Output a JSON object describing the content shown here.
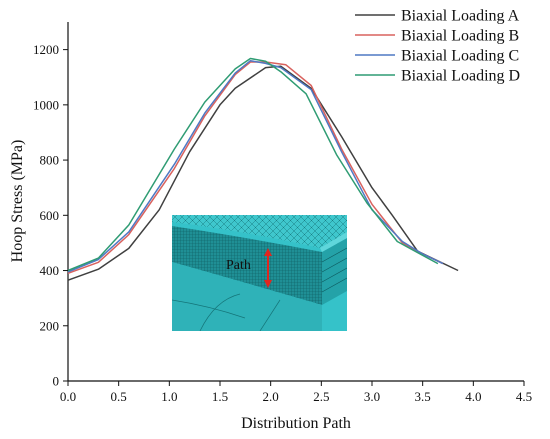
{
  "chart_data": {
    "type": "line",
    "title": "",
    "xlabel": "Distribution Path",
    "ylabel": "Hoop Stress (MPa)",
    "xlim": [
      0.0,
      4.5
    ],
    "ylim": [
      0,
      1300
    ],
    "x_ticks": [
      0.0,
      0.5,
      1.0,
      1.5,
      2.0,
      2.5,
      3.0,
      3.5,
      4.0,
      4.5
    ],
    "x_tick_labels": [
      "0.0",
      "0.5",
      "1.0",
      "1.5",
      "2.0",
      "2.5",
      "3.0",
      "3.5",
      "4.0",
      "4.5"
    ],
    "y_ticks": [
      0,
      200,
      400,
      600,
      800,
      1000,
      1200
    ],
    "y_tick_labels": [
      "0",
      "200",
      "400",
      "600",
      "800",
      "1000",
      "1200"
    ],
    "grid": false,
    "legend_position": "top-right",
    "series": [
      {
        "name": "Biaxial Loading A",
        "color": "#404040",
        "x": [
          0.0,
          0.3,
          0.6,
          0.9,
          1.2,
          1.5,
          1.65,
          1.95,
          2.1,
          2.4,
          2.7,
          3.0,
          3.2,
          3.45,
          3.85
        ],
        "y": [
          365,
          405,
          480,
          620,
          830,
          1000,
          1060,
          1135,
          1140,
          1060,
          885,
          700,
          600,
          470,
          400
        ]
      },
      {
        "name": "Biaxial Loading B",
        "color": "#d9625e",
        "x": [
          0.0,
          0.3,
          0.6,
          1.05,
          1.35,
          1.65,
          1.8,
          1.95,
          2.15,
          2.4,
          2.7,
          3.0,
          3.3,
          3.5,
          3.7
        ],
        "y": [
          390,
          430,
          530,
          770,
          960,
          1110,
          1155,
          1155,
          1145,
          1070,
          840,
          640,
          500,
          460,
          425
        ]
      },
      {
        "name": "Biaxial Loading C",
        "color": "#4f79c4",
        "x": [
          0.0,
          0.3,
          0.6,
          1.05,
          1.35,
          1.65,
          1.8,
          1.95,
          2.1,
          2.4,
          2.7,
          3.0,
          3.3,
          3.5,
          3.7
        ],
        "y": [
          395,
          440,
          540,
          785,
          970,
          1115,
          1160,
          1150,
          1135,
          1055,
          830,
          620,
          505,
          460,
          425
        ]
      },
      {
        "name": "Biaxial Loading D",
        "color": "#2f9c73",
        "x": [
          0.0,
          0.3,
          0.6,
          1.05,
          1.35,
          1.65,
          1.8,
          1.95,
          2.1,
          2.35,
          2.65,
          2.95,
          3.25,
          3.45,
          3.65
        ],
        "y": [
          400,
          445,
          565,
          840,
          1010,
          1130,
          1168,
          1158,
          1120,
          1040,
          820,
          645,
          505,
          465,
          425
        ]
      }
    ],
    "inset": {
      "label": "Path",
      "arrow_color": "#e0261f",
      "background_color": "#35c2c9"
    }
  }
}
